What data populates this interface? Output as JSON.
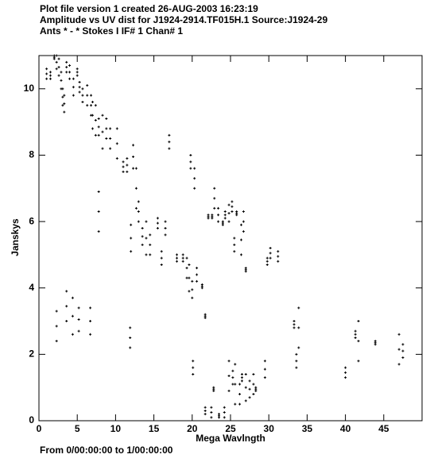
{
  "chart_data": {
    "type": "scatter",
    "title": "Plot file version 1  created 26-AUG-2003 16:23:19",
    "subtitle": "Amplitude vs UV dist for J1924-2914.TF015H.1   Source:J1924-29",
    "annotation": "Ants * - *     Stokes I  IF# 1  Chan# 1",
    "footer": "From  0/00:00:00  to  1/00:00:00",
    "xlabel": "Mega Wavlngth",
    "ylabel": "Janskys",
    "color": "#000000",
    "xlim": [
      0,
      50
    ],
    "ylim": [
      0,
      11
    ],
    "xticks": [
      0,
      5,
      10,
      15,
      20,
      25,
      30,
      35,
      40,
      45
    ],
    "yticks": [
      0,
      2,
      4,
      6,
      8,
      10
    ],
    "x": [
      1.0,
      1.0,
      1.0,
      1.5,
      1.5,
      1.5,
      2.0,
      2.0,
      2.0,
      2.3,
      2.3,
      2.3,
      2.6,
      2.6,
      2.6,
      2.9,
      2.9,
      2.9,
      3.1,
      3.1,
      3.1,
      3.3,
      3.3,
      3.3,
      3.6,
      3.6,
      3.6,
      4.0,
      4.0,
      4.0,
      4.5,
      4.5,
      4.5,
      5.0,
      5.0,
      5.0,
      5.3,
      5.3,
      5.3,
      5.7,
      5.7,
      5.7,
      6.3,
      6.3,
      6.3,
      6.8,
      6.8,
      6.8,
      7.0,
      7.0,
      7.0,
      7.4,
      7.4,
      7.4,
      7.8,
      7.8,
      7.8,
      8.3,
      8.3,
      8.3,
      8.8,
      8.8,
      8.8,
      9.3,
      9.3,
      9.3,
      10.2,
      10.2,
      10.2,
      11.0,
      11.0,
      11.0,
      11.5,
      11.5,
      11.5,
      12.3,
      12.3,
      12.3,
      12.7,
      12.7,
      12.7,
      13.0,
      13.0,
      13.0,
      7.8,
      7.8,
      7.8,
      12.0,
      12.0,
      12.0,
      13.5,
      13.5,
      13.5,
      14.0,
      14.0,
      14.0,
      14.5,
      14.5,
      14.5,
      15.5,
      15.5,
      15.5,
      16.0,
      16.0,
      16.0,
      16.5,
      16.5,
      16.5,
      17.0,
      17.0,
      17.0,
      18.0,
      18.0,
      18.0,
      18.8,
      18.8,
      18.8,
      19.3,
      19.3,
      19.3,
      19.6,
      19.6,
      19.6,
      19.8,
      19.8,
      19.8,
      20.0,
      20.0,
      20.0,
      20.3,
      20.3,
      20.3,
      20.6,
      20.6,
      20.6,
      21.3,
      21.3,
      21.3,
      21.7,
      21.7,
      21.7,
      22.1,
      22.1,
      22.1,
      22.6,
      22.6,
      22.6,
      22.9,
      22.9,
      22.9,
      23.4,
      23.4,
      23.4,
      24.0,
      24.0,
      24.0,
      24.3,
      24.3,
      24.3,
      24.8,
      24.8,
      24.8,
      25.2,
      25.2,
      25.2,
      25.5,
      25.5,
      25.5,
      25.8,
      25.8,
      25.8,
      26.4,
      26.4,
      26.4,
      26.7,
      26.7,
      26.7,
      27.0,
      27.0,
      27.0,
      29.8,
      29.8,
      29.8,
      30.2,
      30.2,
      30.2,
      31.2,
      31.2,
      31.2,
      33.3,
      33.3,
      33.3,
      33.6,
      33.6,
      33.6,
      33.9,
      33.9,
      33.9,
      40.0,
      40.0,
      40.0,
      41.3,
      41.3,
      41.3,
      41.7,
      41.7,
      41.7,
      43.9,
      43.9,
      43.9,
      47.0,
      47.0,
      47.0,
      47.5,
      47.5,
      47.5,
      2.3,
      2.3,
      2.3,
      3.6,
      3.6,
      3.6,
      4.4,
      4.4,
      4.4,
      5.2,
      5.2,
      5.2,
      6.7,
      6.7,
      6.7,
      11.9,
      11.9,
      11.9,
      20.1,
      20.1,
      20.1,
      21.7,
      21.7,
      21.7,
      22.5,
      22.5,
      22.5,
      22.8,
      22.8,
      22.8,
      23.5,
      23.5,
      23.5,
      24.2,
      24.2,
      24.2,
      24.8,
      24.8,
      24.8,
      25.3,
      25.3,
      25.3,
      25.6,
      25.6,
      25.6,
      26.2,
      26.2,
      26.2,
      26.5,
      26.5,
      26.5,
      27.0,
      27.0,
      27.0,
      27.5,
      27.5,
      27.5,
      28.0,
      28.0,
      28.0,
      28.3,
      28.3,
      28.3,
      29.5,
      29.5,
      29.5
    ],
    "y": [
      10.3,
      10.45,
      10.6,
      10.3,
      10.4,
      10.5,
      10.9,
      10.95,
      11.0,
      10.6,
      10.8,
      11.0,
      10.4,
      10.65,
      10.9,
      10.0,
      10.25,
      10.5,
      9.5,
      9.75,
      10.0,
      9.3,
      9.55,
      9.8,
      10.5,
      10.65,
      10.8,
      10.3,
      10.5,
      10.7,
      9.8,
      10.05,
      10.3,
      10.4,
      10.5,
      10.6,
      9.9,
      10.05,
      10.2,
      9.6,
      9.8,
      10.0,
      9.5,
      9.8,
      10.1,
      9.2,
      9.5,
      9.8,
      8.8,
      9.2,
      9.6,
      8.6,
      9.05,
      9.5,
      8.6,
      8.85,
      9.1,
      8.2,
      8.7,
      9.2,
      8.5,
      8.8,
      9.1,
      8.2,
      8.5,
      8.8,
      7.9,
      8.35,
      8.8,
      7.5,
      7.65,
      7.8,
      7.5,
      7.7,
      7.9,
      7.6,
      7.95,
      8.3,
      6.4,
      7.0,
      7.6,
      6.0,
      6.3,
      6.6,
      5.7,
      6.3,
      6.9,
      5.1,
      5.5,
      5.9,
      5.3,
      5.55,
      5.8,
      5.0,
      5.5,
      6.0,
      5.0,
      5.3,
      5.6,
      5.8,
      5.95,
      6.1,
      4.7,
      4.9,
      5.1,
      5.6,
      5.8,
      6.0,
      8.2,
      8.4,
      8.6,
      4.8,
      4.9,
      5.0,
      4.8,
      4.9,
      5.0,
      4.3,
      4.6,
      4.9,
      3.9,
      4.3,
      4.7,
      7.6,
      7.8,
      8.0,
      3.7,
      3.95,
      4.2,
      7.0,
      7.3,
      7.6,
      4.2,
      4.4,
      4.6,
      4.0,
      4.05,
      4.1,
      3.1,
      3.15,
      3.2,
      6.1,
      6.15,
      6.2,
      6.1,
      6.15,
      6.2,
      6.4,
      6.7,
      7.0,
      6.0,
      6.2,
      6.4,
      5.9,
      5.95,
      6.0,
      6.1,
      6.2,
      6.3,
      6.0,
      6.25,
      6.5,
      6.3,
      6.45,
      6.6,
      5.1,
      5.3,
      5.5,
      6.2,
      6.25,
      6.3,
      5.0,
      5.45,
      5.9,
      5.7,
      6.0,
      6.3,
      4.5,
      4.55,
      4.6,
      4.7,
      4.8,
      4.9,
      4.9,
      5.05,
      5.2,
      4.8,
      4.95,
      5.1,
      2.8,
      2.9,
      3.0,
      1.6,
      1.8,
      2.0,
      2.2,
      2.8,
      3.4,
      1.3,
      1.45,
      1.6,
      2.5,
      2.6,
      2.7,
      1.8,
      2.4,
      3.0,
      2.3,
      2.35,
      2.4,
      1.7,
      2.15,
      2.6,
      1.9,
      2.1,
      2.3,
      2.4,
      2.85,
      3.3,
      3.0,
      3.45,
      3.9,
      2.6,
      3.15,
      3.7,
      2.7,
      3.05,
      3.4,
      2.6,
      3.0,
      3.4,
      2.2,
      2.5,
      2.8,
      1.4,
      1.6,
      1.8,
      0.2,
      0.3,
      0.4,
      0.1,
      0.25,
      0.4,
      0.9,
      0.95,
      1.0,
      0.1,
      0.15,
      0.2,
      0.1,
      0.25,
      0.4,
      0.9,
      1.35,
      1.8,
      1.1,
      1.3,
      1.5,
      0.5,
      1.1,
      1.7,
      0.5,
      0.8,
      1.1,
      1.2,
      1.3,
      1.4,
      0.6,
      1.0,
      1.4,
      0.7,
      0.95,
      1.2,
      0.8,
      1.1,
      1.4,
      0.9,
      0.95,
      1.0,
      1.3,
      1.55,
      1.8
    ]
  }
}
